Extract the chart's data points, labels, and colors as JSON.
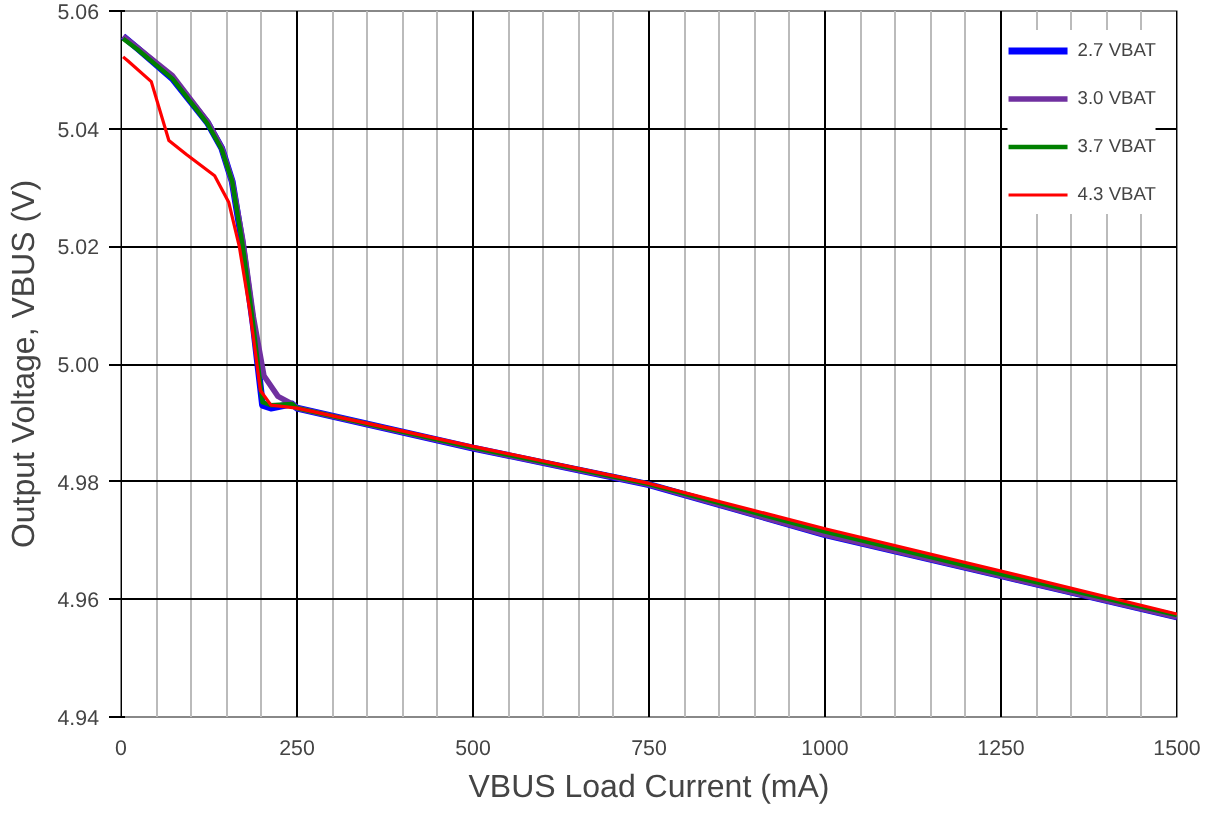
{
  "chart_data": {
    "type": "line",
    "xlabel": "VBUS Load Current (mA)",
    "ylabel": "Output Voltage, VBUS (V)",
    "xlim": [
      0,
      1500
    ],
    "xticks": [
      0,
      {
        "value": 50,
        "label": null
      },
      {
        "value": 100,
        "label": null
      },
      {
        "value": 150,
        "label": null
      },
      {
        "value": 200,
        "label": null
      },
      250,
      {
        "value": 300,
        "label": null
      },
      {
        "value": 350,
        "label": null
      },
      {
        "value": 400,
        "label": null
      },
      {
        "value": 450,
        "label": null
      },
      500,
      {
        "value": 550,
        "label": null
      },
      {
        "value": 600,
        "label": null
      },
      {
        "value": 650,
        "label": null
      },
      {
        "value": 700,
        "label": null
      },
      750,
      {
        "value": 800,
        "label": null
      },
      {
        "value": 850,
        "label": null
      },
      {
        "value": 900,
        "label": null
      },
      {
        "value": 950,
        "label": null
      },
      1000,
      {
        "value": 1050,
        "label": null
      },
      {
        "value": 1100,
        "label": null
      },
      {
        "value": 1150,
        "label": null
      },
      {
        "value": 1200,
        "label": null
      },
      1250,
      {
        "value": 1300,
        "label": null
      },
      {
        "value": 1350,
        "label": null
      },
      {
        "value": 1400,
        "label": null
      },
      {
        "value": 1450,
        "label": null
      },
      1500
    ],
    "ylim": [
      4.94,
      5.06
    ],
    "yticks": [
      4.94,
      4.96,
      4.98,
      {
        "value": 5.0,
        "label": "5.00"
      },
      5.02,
      5.04,
      5.06
    ],
    "grid": true,
    "legend": "top right",
    "marker": "none",
    "line_style": "solid",
    "series": [
      {
        "name": "2.7 VBAT",
        "color": "#0000ff",
        "x": [
          3,
          23,
          73,
          123,
          143,
          158,
          173,
          188,
          201,
          213,
          243,
          250,
          500,
          750,
          1000,
          1250,
          1500
        ],
        "values": [
          5.0557,
          5.0537,
          5.0485,
          5.041,
          5.0367,
          5.031,
          5.02,
          5.0065,
          4.993,
          4.9925,
          4.9932,
          4.9925,
          4.9857,
          4.9795,
          4.971,
          4.964,
          4.957
        ]
      },
      {
        "name": "3.0 VBAT",
        "color": "#7030a0",
        "x": [
          3,
          23,
          73,
          123,
          143,
          158,
          173,
          188,
          203,
          223,
          243,
          250,
          500,
          750,
          1000,
          1250,
          1500
        ],
        "values": [
          5.0557,
          5.0538,
          5.049,
          5.0412,
          5.0368,
          5.031,
          5.021,
          5.008,
          4.998,
          4.9945,
          4.9932,
          4.9925,
          4.9857,
          4.9795,
          4.971,
          4.964,
          4.957
        ]
      },
      {
        "name": "3.7 VBAT",
        "color": "#008000",
        "x": [
          3,
          23,
          73,
          123,
          143,
          158,
          173,
          188,
          201,
          213,
          243,
          250,
          500,
          750,
          1000,
          1250,
          1500
        ],
        "values": [
          5.0553,
          5.0535,
          5.0485,
          5.0408,
          5.0365,
          5.031,
          5.02,
          5.0065,
          4.9935,
          4.993,
          4.9932,
          4.9925,
          4.9858,
          4.9796,
          4.9715,
          4.9643,
          4.9573
        ]
      },
      {
        "name": "4.3 VBAT",
        "color": "#ff0000",
        "x": [
          3,
          10,
          43,
          68,
          93,
          133,
          153,
          168,
          183,
          198,
          213,
          250,
          500,
          750,
          1000,
          1250,
          1500
        ],
        "values": [
          5.0522,
          5.0515,
          5.048,
          5.038,
          5.0356,
          5.032,
          5.0275,
          5.02,
          5.009,
          4.9955,
          4.993,
          4.9925,
          4.986,
          4.9797,
          4.972,
          4.9648,
          4.9575
        ]
      }
    ]
  }
}
